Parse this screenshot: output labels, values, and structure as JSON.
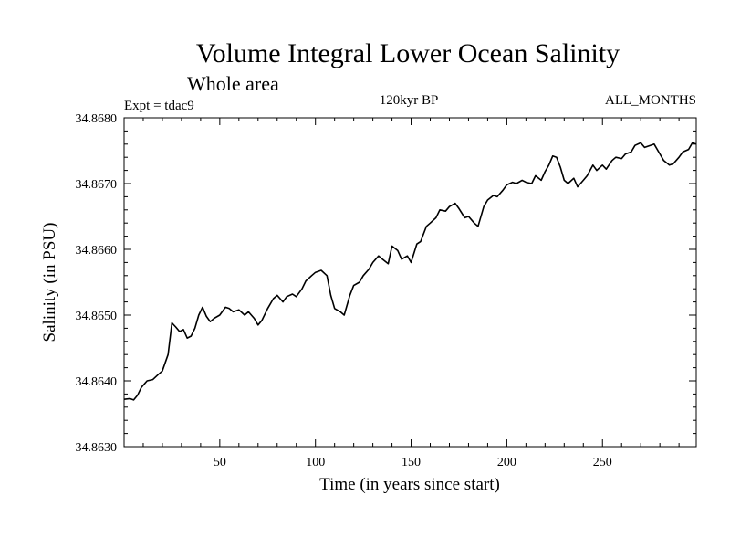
{
  "chart_data": {
    "type": "line",
    "title": "Volume Integral Lower Ocean Salinity",
    "subtitle": "Whole area",
    "annotations": {
      "left": "Expt = tdac9",
      "center": "120kyr BP",
      "right": "ALL_MONTHS"
    },
    "xlabel": "Time (in years since start)",
    "ylabel": "Salinity (in PSU)",
    "xlim": [
      0,
      299
    ],
    "ylim": [
      34.863,
      34.868
    ],
    "xticks": [
      50,
      100,
      150,
      200,
      250
    ],
    "xtick_labels": [
      "50",
      "100",
      "150",
      "200",
      "250"
    ],
    "yticks": [
      34.863,
      34.864,
      34.865,
      34.866,
      34.867,
      34.868
    ],
    "ytick_labels": [
      "34.8630",
      "34.8640",
      "34.8650",
      "34.8660",
      "34.8670",
      "34.8680"
    ],
    "legend": "none",
    "grid": false,
    "series": [
      {
        "name": "Salinity",
        "x": [
          0,
          3,
          5,
          7,
          9,
          12,
          15,
          18,
          20,
          23,
          25,
          27,
          29,
          31,
          33,
          35,
          37,
          39,
          41,
          43,
          45,
          47,
          50,
          53,
          55,
          57,
          60,
          63,
          65,
          68,
          70,
          72,
          75,
          78,
          80,
          83,
          85,
          88,
          90,
          93,
          95,
          98,
          100,
          103,
          106,
          108,
          110,
          113,
          115,
          118,
          120,
          123,
          125,
          128,
          130,
          133,
          135,
          138,
          140,
          143,
          145,
          148,
          150,
          153,
          155,
          158,
          160,
          163,
          165,
          168,
          170,
          173,
          175,
          178,
          180,
          183,
          185,
          188,
          190,
          193,
          195,
          198,
          200,
          203,
          205,
          208,
          210,
          213,
          215,
          218,
          220,
          222,
          224,
          226,
          228,
          230,
          232,
          235,
          237,
          240,
          242,
          245,
          247,
          250,
          252,
          255,
          257,
          260,
          262,
          265,
          267,
          270,
          272,
          275,
          277,
          280,
          282,
          285,
          287,
          290,
          292,
          295,
          297,
          299
        ],
        "values": [
          34.86372,
          34.86373,
          34.86371,
          34.86378,
          34.8639,
          34.864,
          34.86402,
          34.8641,
          34.86415,
          34.8644,
          34.86488,
          34.86482,
          34.86475,
          34.86478,
          34.86465,
          34.86468,
          34.8648,
          34.865,
          34.86512,
          34.86498,
          34.8649,
          34.86495,
          34.865,
          34.86512,
          34.8651,
          34.86505,
          34.86508,
          34.865,
          34.86505,
          34.86495,
          34.86485,
          34.86492,
          34.8651,
          34.86525,
          34.8653,
          34.8652,
          34.86528,
          34.86532,
          34.86528,
          34.8654,
          34.86552,
          34.8656,
          34.86565,
          34.86568,
          34.8656,
          34.8653,
          34.8651,
          34.86505,
          34.865,
          34.8653,
          34.86545,
          34.8655,
          34.8656,
          34.8657,
          34.8658,
          34.8659,
          34.86585,
          34.86578,
          34.86605,
          34.86598,
          34.86585,
          34.8659,
          34.8658,
          34.86608,
          34.86612,
          34.86635,
          34.8664,
          34.86648,
          34.8666,
          34.86658,
          34.86665,
          34.8667,
          34.86662,
          34.86648,
          34.8665,
          34.8664,
          34.86635,
          34.86665,
          34.86675,
          34.86682,
          34.8668,
          34.8669,
          34.86698,
          34.86702,
          34.867,
          34.86705,
          34.86702,
          34.867,
          34.86712,
          34.86705,
          34.86718,
          34.86728,
          34.86742,
          34.8674,
          34.86725,
          34.86705,
          34.867,
          34.86708,
          34.86695,
          34.86705,
          34.86712,
          34.86728,
          34.8672,
          34.86728,
          34.86722,
          34.86735,
          34.8674,
          34.86738,
          34.86745,
          34.86748,
          34.86758,
          34.86762,
          34.86755,
          34.86758,
          34.8676,
          34.86745,
          34.86735,
          34.86728,
          34.8673,
          34.8674,
          34.86748,
          34.86752,
          34.86762,
          34.8676
        ]
      }
    ]
  }
}
